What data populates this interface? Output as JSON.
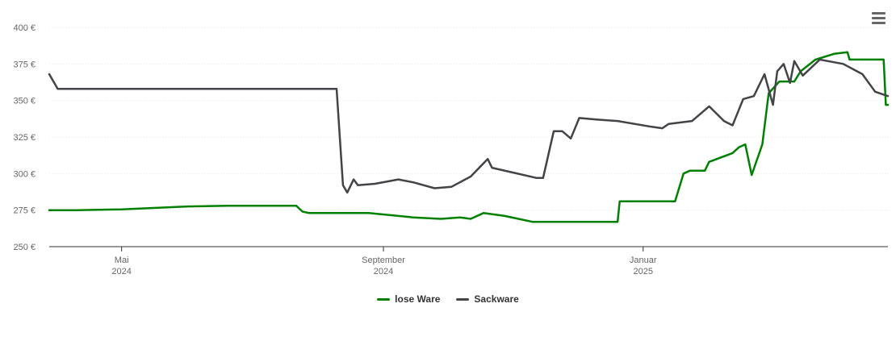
{
  "chart_data": {
    "type": "line",
    "title": "",
    "xlabel": "",
    "ylabel": "",
    "ylim": [
      250,
      400
    ],
    "y_ticks": [
      250,
      275,
      300,
      325,
      350,
      375,
      400
    ],
    "y_tick_labels": [
      "250 €",
      "275 €",
      "300 €",
      "325 €",
      "350 €",
      "375 €",
      "400 €"
    ],
    "x_ticks": [
      {
        "date": "2024-05-01",
        "month": "Mai",
        "year": "2024"
      },
      {
        "date": "2024-09-01",
        "month": "September",
        "year": "2024"
      },
      {
        "date": "2025-01-01",
        "month": "Januar",
        "year": "2025"
      }
    ],
    "xlim": [
      "2024-03-28",
      "2025-04-26"
    ],
    "grid": true,
    "legend_position": "bottom",
    "series": [
      {
        "name": "lose Ware",
        "color": "#008000",
        "points": [
          [
            "2024-03-28",
            275
          ],
          [
            "2024-04-10",
            275
          ],
          [
            "2024-05-01",
            275.5
          ],
          [
            "2024-06-01",
            277.5
          ],
          [
            "2024-06-20",
            278
          ],
          [
            "2024-07-22",
            278
          ],
          [
            "2024-07-25",
            274
          ],
          [
            "2024-07-28",
            273
          ],
          [
            "2024-08-25",
            273
          ],
          [
            "2024-09-15",
            270
          ],
          [
            "2024-09-28",
            269
          ],
          [
            "2024-10-07",
            270
          ],
          [
            "2024-10-12",
            269
          ],
          [
            "2024-10-18",
            273
          ],
          [
            "2024-10-28",
            271
          ],
          [
            "2024-11-10",
            267
          ],
          [
            "2024-12-20",
            267
          ],
          [
            "2024-12-21",
            281
          ],
          [
            "2025-01-16",
            281
          ],
          [
            "2025-01-20",
            300
          ],
          [
            "2025-01-23",
            302
          ],
          [
            "2025-01-30",
            302
          ],
          [
            "2025-02-01",
            308
          ],
          [
            "2025-02-12",
            314
          ],
          [
            "2025-02-15",
            318
          ],
          [
            "2025-02-18",
            320
          ],
          [
            "2025-02-21",
            299
          ],
          [
            "2025-02-26",
            320
          ],
          [
            "2025-03-01",
            355
          ],
          [
            "2025-03-06",
            363
          ],
          [
            "2025-03-13",
            363
          ],
          [
            "2025-03-16",
            370
          ],
          [
            "2025-03-23",
            378
          ],
          [
            "2025-04-01",
            382
          ],
          [
            "2025-04-07",
            383
          ],
          [
            "2025-04-08",
            378
          ],
          [
            "2025-04-24",
            378
          ],
          [
            "2025-04-25",
            347
          ],
          [
            "2025-04-26",
            347
          ]
        ]
      },
      {
        "name": "Sackware",
        "color": "#434348",
        "points": [
          [
            "2024-03-28",
            368
          ],
          [
            "2024-04-01",
            358
          ],
          [
            "2024-08-10",
            358
          ],
          [
            "2024-08-13",
            292
          ],
          [
            "2024-08-15",
            287
          ],
          [
            "2024-08-18",
            296
          ],
          [
            "2024-08-20",
            292
          ],
          [
            "2024-08-28",
            293
          ],
          [
            "2024-09-08",
            296
          ],
          [
            "2024-09-15",
            294
          ],
          [
            "2024-09-25",
            290
          ],
          [
            "2024-10-03",
            291
          ],
          [
            "2024-10-12",
            298
          ],
          [
            "2024-10-20",
            310
          ],
          [
            "2024-10-22",
            304
          ],
          [
            "2024-11-12",
            297
          ],
          [
            "2024-11-15",
            297
          ],
          [
            "2024-11-20",
            329
          ],
          [
            "2024-11-24",
            329
          ],
          [
            "2024-11-28",
            324
          ],
          [
            "2024-12-02",
            338
          ],
          [
            "2024-12-10",
            337
          ],
          [
            "2024-12-20",
            336
          ],
          [
            "2025-01-05",
            332
          ],
          [
            "2025-01-10",
            331
          ],
          [
            "2025-01-13",
            334
          ],
          [
            "2025-01-24",
            336
          ],
          [
            "2025-02-01",
            346
          ],
          [
            "2025-02-08",
            336
          ],
          [
            "2025-02-12",
            333
          ],
          [
            "2025-02-17",
            351
          ],
          [
            "2025-02-22",
            353
          ],
          [
            "2025-02-27",
            368
          ],
          [
            "2025-03-03",
            347
          ],
          [
            "2025-03-05",
            370
          ],
          [
            "2025-03-08",
            375
          ],
          [
            "2025-03-11",
            362
          ],
          [
            "2025-03-13",
            377
          ],
          [
            "2025-03-17",
            367
          ],
          [
            "2025-03-25",
            378
          ],
          [
            "2025-04-05",
            375
          ],
          [
            "2025-04-14",
            368
          ],
          [
            "2025-04-20",
            356
          ],
          [
            "2025-04-26",
            353
          ]
        ]
      }
    ]
  }
}
